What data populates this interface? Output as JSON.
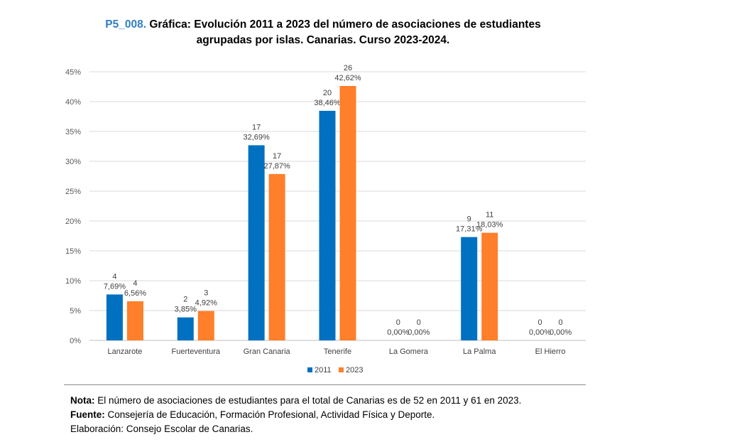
{
  "header": {
    "code": "P5_008.",
    "title_line1": "Gráfica: Evolución 2011 a 2023 del número de asociaciones de estudiantes",
    "title_line2": "agrupadas por islas. Canarias. Curso 2023-2024."
  },
  "chart_data": {
    "type": "bar",
    "categories": [
      "Lanzarote",
      "Fuerteventura",
      "Gran Canaria",
      "Tenerife",
      "La Gomera",
      "La Palma",
      "El Hierro"
    ],
    "series": [
      {
        "name": "2011",
        "color": "#0070c0",
        "values": [
          7.69,
          3.85,
          32.69,
          38.46,
          0,
          17.31,
          0
        ],
        "counts": [
          "4",
          "2",
          "17",
          "20",
          "0",
          "9",
          "0"
        ],
        "labels": [
          "7,69%",
          "3,85%",
          "32,69%",
          "38,46%",
          "0,00%",
          "17,31%",
          "0,00%"
        ]
      },
      {
        "name": "2023",
        "color": "#ff7f2a",
        "values": [
          6.56,
          4.92,
          27.87,
          42.62,
          0,
          18.03,
          0
        ],
        "counts": [
          "4",
          "3",
          "17",
          "26",
          "0",
          "11",
          "0"
        ],
        "labels": [
          "6,56%",
          "4,92%",
          "27,87%",
          "42,62%",
          "0,00%",
          "18,03%",
          "0,00%"
        ]
      }
    ],
    "yticks": [
      "0%",
      "5%",
      "10%",
      "15%",
      "20%",
      "25%",
      "30%",
      "35%",
      "40%",
      "45%"
    ],
    "ylim": [
      0,
      45
    ],
    "grid": true,
    "legend": "bottom-center"
  },
  "notes": {
    "nota_label": "Nota:",
    "nota_text": " El número de asociaciones de estudiantes para el total de Canarias es de 52 en 2011 y 61 en 2023.",
    "fuente_label": "Fuente:",
    "fuente_text": " Consejería de Educación, Formación Profesional, Actividad Física y Deporte.",
    "elaboracion": "Elaboración: Consejo Escolar de Canarias."
  }
}
